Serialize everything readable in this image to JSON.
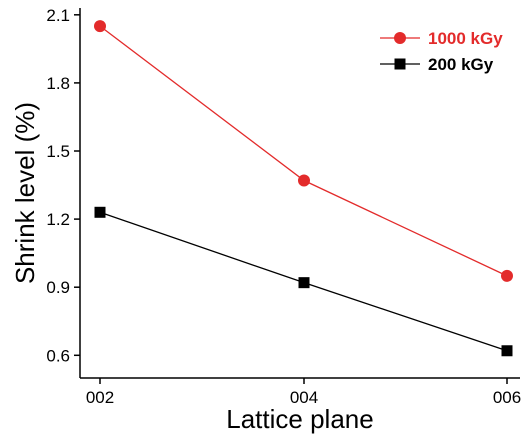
{
  "chart_data": {
    "type": "line",
    "categories": [
      "002",
      "004",
      "006"
    ],
    "series": [
      {
        "name": "1000 kGy",
        "values": [
          2.05,
          1.37,
          0.95
        ],
        "color": "#e32b2b",
        "marker": "circle"
      },
      {
        "name": "200 kGy",
        "values": [
          1.23,
          0.92,
          0.62
        ],
        "color": "#000000",
        "marker": "square"
      }
    ],
    "xlabel": "Lattice plane",
    "ylabel": "Shrink level (%)",
    "ylim": [
      0.5,
      2.13
    ],
    "yticks": [
      "0.6",
      "0.9",
      "1.2",
      "1.5",
      "1.8",
      "2.1"
    ],
    "grid": false,
    "legend_position": "top-right"
  }
}
